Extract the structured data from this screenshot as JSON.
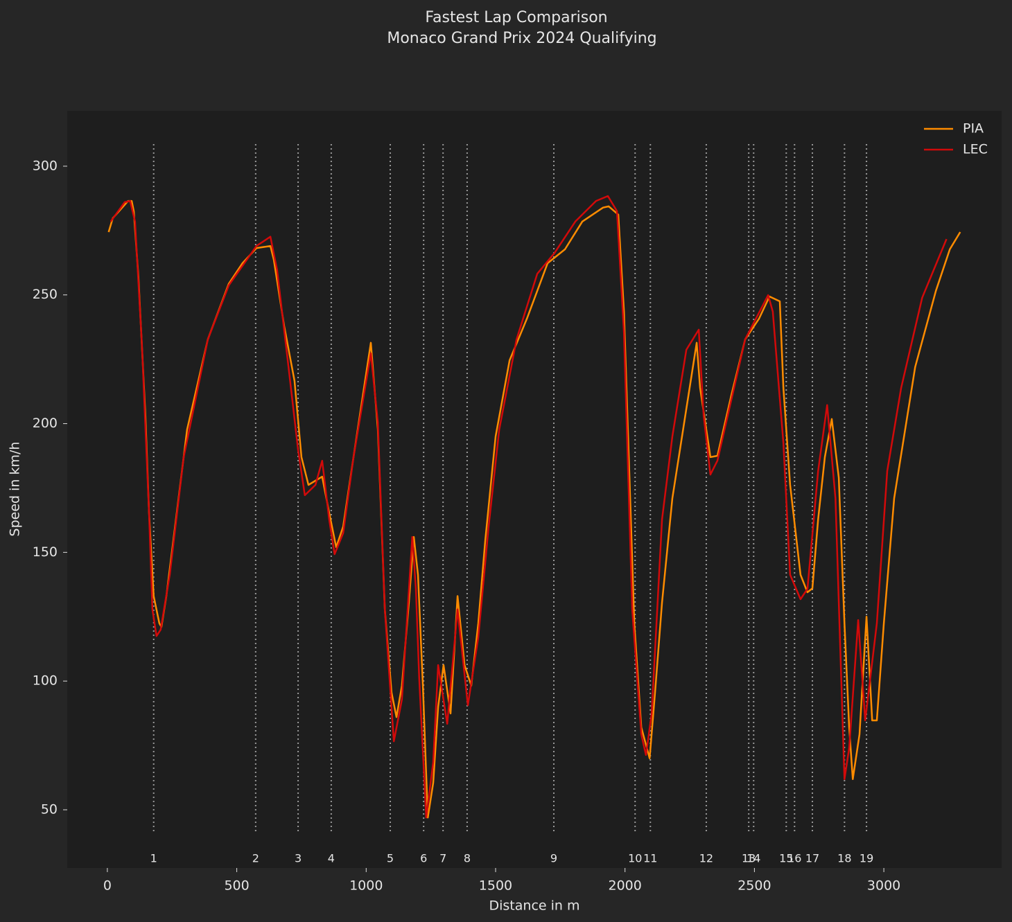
{
  "chart_data": {
    "type": "line",
    "title": "Fastest Lap Comparison",
    "subtitle": "Monaco Grand Prix 2024 Qualifying",
    "xlabel": "Distance in m",
    "ylabel": "Speed in km/h",
    "xlim": [
      -155,
      3455
    ],
    "ylim": [
      27.4,
      321.5
    ],
    "xticks": [
      0,
      500,
      1000,
      1500,
      2000,
      2500,
      3000
    ],
    "yticks": [
      50,
      100,
      150,
      200,
      250,
      300
    ],
    "legend": "upper right",
    "corners": {
      "distances": [
        179,
        573,
        737,
        865,
        1093,
        1222,
        1297,
        1390,
        1725,
        2039,
        2098,
        2314,
        2478,
        2497,
        2623,
        2655,
        2724,
        2848,
        2933
      ],
      "labels": [
        "1",
        "2",
        "3",
        "4",
        "5",
        "6",
        "7",
        "8",
        "9",
        "10",
        "11",
        "12",
        "13",
        "14",
        "15",
        "16",
        "17",
        "18",
        "19"
      ]
    },
    "series": [
      {
        "name": "PIA",
        "color": "#ff8c00",
        "x": [
          5,
          21,
          80,
          94,
          102,
          120,
          147,
          161,
          179,
          201,
          209,
          228,
          255,
          308,
          388,
          469,
          522,
          576,
          630,
          643,
          683,
          723,
          750,
          777,
          830,
          857,
          884,
          911,
          951,
          1018,
          1045,
          1072,
          1098,
          1117,
          1138,
          1165,
          1184,
          1200,
          1219,
          1238,
          1259,
          1278,
          1299,
          1326,
          1353,
          1380,
          1406,
          1433,
          1460,
          1500,
          1554,
          1621,
          1701,
          1768,
          1835,
          1915,
          1937,
          1974,
          1996,
          2036,
          2063,
          2095,
          2116,
          2143,
          2183,
          2237,
          2277,
          2290,
          2330,
          2357,
          2411,
          2464,
          2518,
          2558,
          2598,
          2612,
          2638,
          2678,
          2705,
          2724,
          2746,
          2772,
          2799,
          2826,
          2848,
          2866,
          2880,
          2906,
          2933,
          2955,
          2973,
          3000,
          3040,
          3121,
          3201,
          3255,
          3295
        ],
        "values": [
          274.4,
          279.8,
          286.5,
          286.5,
          282.5,
          257,
          203,
          165.5,
          133,
          122.4,
          121,
          133,
          154.7,
          197.7,
          232.7,
          254.3,
          262.3,
          268.2,
          269,
          263.7,
          238,
          216.6,
          187,
          176.2,
          179.4,
          165.4,
          152,
          160,
          187,
          231.4,
          197.8,
          127.8,
          95.5,
          86,
          98.2,
          130.5,
          156,
          141.3,
          98.2,
          47,
          60.5,
          90,
          106.2,
          87.4,
          133,
          106.2,
          98.2,
          122.4,
          154.7,
          195,
          224.6,
          240.8,
          262.3,
          267.7,
          278.5,
          283.9,
          284.4,
          281.2,
          243.5,
          122.4,
          82,
          70,
          95.5,
          130.5,
          171,
          205.8,
          231.4,
          213.9,
          187,
          187.5,
          211.2,
          232.7,
          240.8,
          249.4,
          247.5,
          213.9,
          176.2,
          141.3,
          134.5,
          136,
          162.8,
          187,
          201.8,
          179,
          122.4,
          82,
          61.9,
          79.3,
          125,
          84.7,
          84.7,
          122.4,
          171,
          222,
          251.6,
          267.7,
          274.4
        ]
      },
      {
        "name": "LEC",
        "color": "#d20a0a",
        "x": [
          13,
          67,
          88,
          107,
          134,
          161,
          174,
          190,
          206,
          241,
          295,
          388,
          469,
          576,
          630,
          656,
          697,
          737,
          763,
          804,
          830,
          857,
          878,
          911,
          951,
          1018,
          1045,
          1072,
          1107,
          1138,
          1178,
          1192,
          1205,
          1232,
          1259,
          1278,
          1313,
          1353,
          1393,
          1433,
          1473,
          1514,
          1581,
          1661,
          1728,
          1808,
          1888,
          1934,
          1969,
          1996,
          2028,
          2063,
          2081,
          2103,
          2143,
          2183,
          2237,
          2285,
          2304,
          2330,
          2357,
          2464,
          2553,
          2571,
          2612,
          2638,
          2678,
          2705,
          2746,
          2781,
          2813,
          2848,
          2866,
          2901,
          2928,
          2973,
          3013,
          3067,
          3148,
          3242
        ],
        "values": [
          278.5,
          286,
          286.5,
          278.5,
          230,
          165.5,
          127.8,
          117.5,
          120,
          141.3,
          187,
          232.7,
          253.7,
          269,
          272.6,
          259.6,
          224.6,
          189.7,
          172.2,
          176.2,
          185.6,
          162.8,
          149.3,
          157.5,
          187,
          227.3,
          200.5,
          127.8,
          76.6,
          92.8,
          156,
          135.8,
          101,
          47,
          68.5,
          106.2,
          83.4,
          127.8,
          90.6,
          117,
          160,
          197.7,
          232.7,
          258.2,
          266.3,
          278.5,
          286.5,
          288.4,
          282.5,
          235.4,
          127.8,
          79.3,
          71.3,
          87.4,
          162.8,
          195,
          228.7,
          236.5,
          203,
          180.2,
          185.6,
          232.7,
          249.9,
          243.5,
          192.4,
          141.3,
          131.8,
          135.8,
          181.6,
          207.2,
          171,
          61.9,
          74,
          123.7,
          84.7,
          122.4,
          181.6,
          213.9,
          248.9,
          271.7
        ]
      }
    ]
  }
}
